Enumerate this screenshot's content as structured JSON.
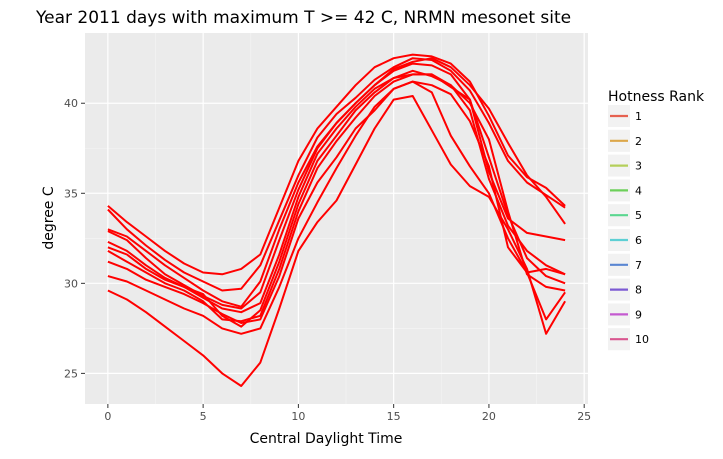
{
  "chart_data": {
    "type": "line",
    "title": "Year 2011 days with maximum T >= 42 C, NRMN mesonet site",
    "xlabel": "Central Daylight Time",
    "ylabel": "degree C",
    "xlim": [
      -1.2,
      25.2
    ],
    "ylim": [
      23.3,
      43.9
    ],
    "x_ticks": [
      0,
      5,
      10,
      15,
      20,
      25
    ],
    "y_ticks": [
      25,
      30,
      35,
      40
    ],
    "legend": {
      "title": "Hotness Rank",
      "position": "right",
      "entries": [
        {
          "label": "1",
          "color": "#e66150"
        },
        {
          "label": "2",
          "color": "#dca74a"
        },
        {
          "label": "3",
          "color": "#b4cf5a"
        },
        {
          "label": "4",
          "color": "#6dd05a"
        },
        {
          "label": "5",
          "color": "#5bd68f"
        },
        {
          "label": "6",
          "color": "#5dcfd4"
        },
        {
          "label": "7",
          "color": "#5a86d2"
        },
        {
          "label": "8",
          "color": "#7c5ad3"
        },
        {
          "label": "9",
          "color": "#c45ad0"
        },
        {
          "label": "10",
          "color": "#d9568f"
        }
      ]
    },
    "line_color": "#ff0000",
    "series": [
      {
        "name": "1",
        "points": [
          [
            0,
            34.3
          ],
          [
            1,
            33.4
          ],
          [
            2,
            32.6
          ],
          [
            3,
            31.8
          ],
          [
            4,
            31.1
          ],
          [
            5,
            30.6
          ],
          [
            6,
            30.5
          ],
          [
            7,
            30.8
          ],
          [
            8,
            31.6
          ],
          [
            9,
            34.2
          ],
          [
            10,
            36.8
          ],
          [
            11,
            38.6
          ],
          [
            12,
            39.8
          ],
          [
            13,
            41.0
          ],
          [
            14,
            42.0
          ],
          [
            15,
            42.5
          ],
          [
            16,
            42.7
          ],
          [
            17,
            42.6
          ],
          [
            18,
            42.2
          ],
          [
            19,
            41.2
          ],
          [
            20,
            39.3
          ],
          [
            21,
            37.1
          ],
          [
            22,
            35.9
          ],
          [
            23,
            35.3
          ],
          [
            24,
            34.3
          ]
        ]
      },
      {
        "name": "2",
        "points": [
          [
            0,
            34.1
          ],
          [
            1,
            33.0
          ],
          [
            2,
            32.1
          ],
          [
            3,
            31.3
          ],
          [
            4,
            30.6
          ],
          [
            5,
            30.1
          ],
          [
            6,
            29.6
          ],
          [
            7,
            29.7
          ],
          [
            8,
            31.0
          ],
          [
            9,
            33.5
          ],
          [
            10,
            36.0
          ],
          [
            11,
            38.1
          ],
          [
            12,
            39.4
          ],
          [
            13,
            40.3
          ],
          [
            14,
            41.3
          ],
          [
            15,
            42.0
          ],
          [
            16,
            42.5
          ],
          [
            17,
            42.4
          ],
          [
            18,
            41.8
          ],
          [
            19,
            40.7
          ],
          [
            20,
            38.9
          ],
          [
            21,
            36.8
          ],
          [
            22,
            35.6
          ],
          [
            23,
            34.9
          ],
          [
            24,
            34.2
          ]
        ]
      },
      {
        "name": "3",
        "points": [
          [
            0,
            33.0
          ],
          [
            1,
            32.6
          ],
          [
            2,
            31.8
          ],
          [
            3,
            31.0
          ],
          [
            4,
            30.3
          ],
          [
            5,
            29.6
          ],
          [
            6,
            29.0
          ],
          [
            7,
            28.7
          ],
          [
            8,
            30.1
          ],
          [
            9,
            33.0
          ],
          [
            10,
            35.6
          ],
          [
            11,
            37.6
          ],
          [
            12,
            38.9
          ],
          [
            13,
            40.0
          ],
          [
            14,
            41.0
          ],
          [
            15,
            41.9
          ],
          [
            16,
            42.3
          ],
          [
            17,
            42.5
          ],
          [
            18,
            42.0
          ],
          [
            19,
            41.0
          ],
          [
            20,
            39.7
          ],
          [
            21,
            37.8
          ],
          [
            22,
            36.0
          ],
          [
            23,
            34.8
          ],
          [
            24,
            33.3
          ]
        ]
      },
      {
        "name": "4",
        "points": [
          [
            0,
            32.9
          ],
          [
            1,
            32.4
          ],
          [
            2,
            31.4
          ],
          [
            3,
            30.5
          ],
          [
            4,
            29.9
          ],
          [
            5,
            29.3
          ],
          [
            6,
            28.8
          ],
          [
            7,
            28.6
          ],
          [
            8,
            29.5
          ],
          [
            9,
            32.4
          ],
          [
            10,
            35.2
          ],
          [
            11,
            37.5
          ],
          [
            12,
            38.9
          ],
          [
            13,
            40.0
          ],
          [
            14,
            41.0
          ],
          [
            15,
            41.8
          ],
          [
            16,
            42.2
          ],
          [
            17,
            42.1
          ],
          [
            18,
            41.6
          ],
          [
            19,
            40.2
          ],
          [
            20,
            36.2
          ],
          [
            21,
            33.6
          ],
          [
            22,
            32.8
          ],
          [
            23,
            32.6
          ],
          [
            24,
            32.4
          ]
        ]
      },
      {
        "name": "5",
        "points": [
          [
            0,
            32.3
          ],
          [
            1,
            31.8
          ],
          [
            2,
            31.0
          ],
          [
            3,
            30.3
          ],
          [
            4,
            29.8
          ],
          [
            5,
            29.2
          ],
          [
            6,
            28.6
          ],
          [
            7,
            28.4
          ],
          [
            8,
            28.9
          ],
          [
            9,
            31.6
          ],
          [
            10,
            34.8
          ],
          [
            11,
            37.2
          ],
          [
            12,
            38.6
          ],
          [
            13,
            39.8
          ],
          [
            14,
            40.8
          ],
          [
            15,
            41.4
          ],
          [
            16,
            41.8
          ],
          [
            17,
            41.5
          ],
          [
            18,
            41.0
          ],
          [
            19,
            39.6
          ],
          [
            20,
            35.8
          ],
          [
            21,
            33.2
          ],
          [
            22,
            31.8
          ],
          [
            23,
            31.0
          ],
          [
            24,
            30.5
          ]
        ]
      },
      {
        "name": "6",
        "points": [
          [
            0,
            32.0
          ],
          [
            1,
            31.6
          ],
          [
            2,
            30.8
          ],
          [
            3,
            30.2
          ],
          [
            4,
            29.8
          ],
          [
            5,
            29.4
          ],
          [
            6,
            28.2
          ],
          [
            7,
            27.6
          ],
          [
            8,
            28.5
          ],
          [
            9,
            31.2
          ],
          [
            10,
            34.4
          ],
          [
            11,
            36.8
          ],
          [
            12,
            38.2
          ],
          [
            13,
            39.6
          ],
          [
            14,
            40.6
          ],
          [
            15,
            41.4
          ],
          [
            16,
            41.6
          ],
          [
            17,
            41.6
          ],
          [
            18,
            40.9
          ],
          [
            19,
            40.2
          ],
          [
            20,
            37.0
          ],
          [
            21,
            33.8
          ],
          [
            22,
            31.4
          ],
          [
            23,
            30.4
          ],
          [
            24,
            30.0
          ]
        ]
      },
      {
        "name": "7",
        "points": [
          [
            0,
            31.8
          ],
          [
            1,
            31.2
          ],
          [
            2,
            30.6
          ],
          [
            3,
            30.0
          ],
          [
            4,
            29.6
          ],
          [
            5,
            29.0
          ],
          [
            6,
            28.0
          ],
          [
            7,
            27.9
          ],
          [
            8,
            28.2
          ],
          [
            9,
            30.8
          ],
          [
            10,
            34.0
          ],
          [
            11,
            36.4
          ],
          [
            12,
            37.9
          ],
          [
            13,
            39.2
          ],
          [
            14,
            40.4
          ],
          [
            15,
            41.2
          ],
          [
            16,
            41.6
          ],
          [
            17,
            41.6
          ],
          [
            18,
            41.0
          ],
          [
            19,
            40.0
          ],
          [
            20,
            38.0
          ],
          [
            21,
            34.0
          ],
          [
            22,
            30.5
          ],
          [
            23,
            29.8
          ],
          [
            24,
            29.6
          ]
        ]
      },
      {
        "name": "8",
        "points": [
          [
            0,
            31.2
          ],
          [
            1,
            30.8
          ],
          [
            2,
            30.2
          ],
          [
            3,
            29.8
          ],
          [
            4,
            29.4
          ],
          [
            5,
            28.9
          ],
          [
            6,
            28.3
          ],
          [
            7,
            27.8
          ],
          [
            8,
            28.0
          ],
          [
            9,
            30.4
          ],
          [
            10,
            33.6
          ],
          [
            11,
            35.6
          ],
          [
            12,
            37.0
          ],
          [
            13,
            38.6
          ],
          [
            14,
            39.6
          ],
          [
            15,
            40.8
          ],
          [
            16,
            41.2
          ],
          [
            17,
            41.0
          ],
          [
            18,
            40.5
          ],
          [
            19,
            39.0
          ],
          [
            20,
            36.5
          ],
          [
            21,
            32.0
          ],
          [
            22,
            30.6
          ],
          [
            23,
            30.8
          ],
          [
            24,
            30.5
          ]
        ]
      },
      {
        "name": "9",
        "points": [
          [
            0,
            30.4
          ],
          [
            1,
            30.1
          ],
          [
            2,
            29.6
          ],
          [
            3,
            29.1
          ],
          [
            4,
            28.6
          ],
          [
            5,
            28.2
          ],
          [
            6,
            27.5
          ],
          [
            7,
            27.2
          ],
          [
            8,
            27.5
          ],
          [
            9,
            29.8
          ],
          [
            10,
            32.5
          ],
          [
            11,
            34.5
          ],
          [
            12,
            36.4
          ],
          [
            13,
            38.2
          ],
          [
            14,
            39.8
          ],
          [
            15,
            40.8
          ],
          [
            16,
            41.2
          ],
          [
            17,
            40.6
          ],
          [
            18,
            38.2
          ],
          [
            19,
            36.5
          ],
          [
            20,
            35.0
          ],
          [
            21,
            32.5
          ],
          [
            22,
            30.6
          ],
          [
            23,
            28.0
          ],
          [
            24,
            29.5
          ]
        ]
      },
      {
        "name": "10",
        "points": [
          [
            0,
            29.6
          ],
          [
            1,
            29.1
          ],
          [
            2,
            28.4
          ],
          [
            3,
            27.6
          ],
          [
            4,
            26.8
          ],
          [
            5,
            26.0
          ],
          [
            6,
            25.0
          ],
          [
            7,
            24.3
          ],
          [
            8,
            25.6
          ],
          [
            9,
            28.6
          ],
          [
            10,
            31.8
          ],
          [
            11,
            33.4
          ],
          [
            12,
            34.6
          ],
          [
            13,
            36.6
          ],
          [
            14,
            38.6
          ],
          [
            15,
            40.2
          ],
          [
            16,
            40.4
          ],
          [
            17,
            38.5
          ],
          [
            18,
            36.6
          ],
          [
            19,
            35.4
          ],
          [
            20,
            34.8
          ],
          [
            21,
            33.0
          ],
          [
            22,
            30.8
          ],
          [
            23,
            27.2
          ],
          [
            24,
            29.0
          ]
        ]
      }
    ]
  }
}
